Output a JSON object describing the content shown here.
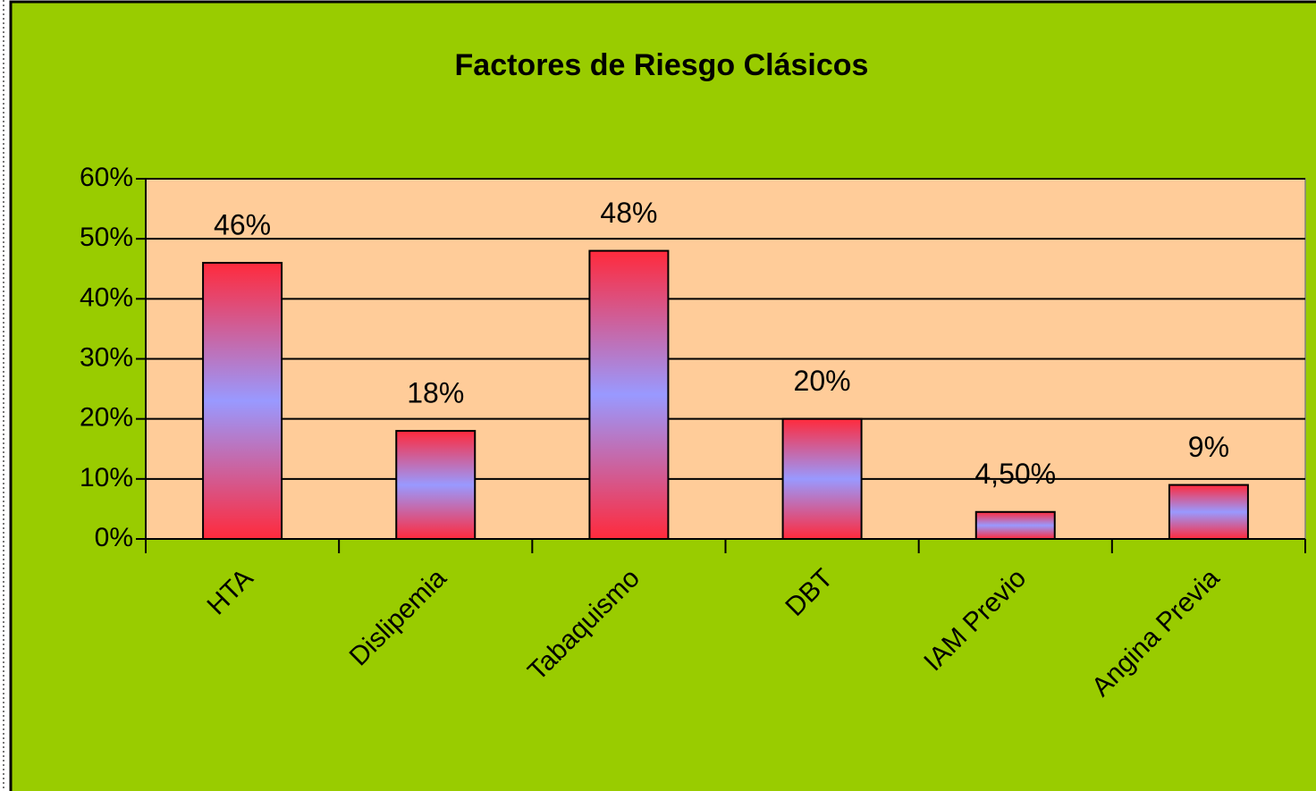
{
  "chart_data": {
    "type": "bar",
    "title": "Factores de Riesgo Clásicos",
    "categories": [
      "HTA",
      "Dislipemia",
      "Tabaquismo",
      "DBT",
      "IAM Previo",
      "Angina Previa"
    ],
    "values": [
      46,
      18,
      48,
      20,
      4.5,
      9
    ],
    "value_labels": [
      "46%",
      "18%",
      "48%",
      "20%",
      "4,50%",
      "9%"
    ],
    "colors": [
      "#ff2a3c",
      "#9999ff"
    ],
    "ylim": [
      0,
      60
    ],
    "yticks": [
      {
        "value": 0,
        "label": "0%"
      },
      {
        "value": 10,
        "label": "10%"
      },
      {
        "value": 20,
        "label": "20%"
      },
      {
        "value": 30,
        "label": "30%"
      },
      {
        "value": 40,
        "label": "40%"
      },
      {
        "value": 50,
        "label": "50%"
      },
      {
        "value": 60,
        "label": "60%"
      }
    ],
    "grid": true
  }
}
